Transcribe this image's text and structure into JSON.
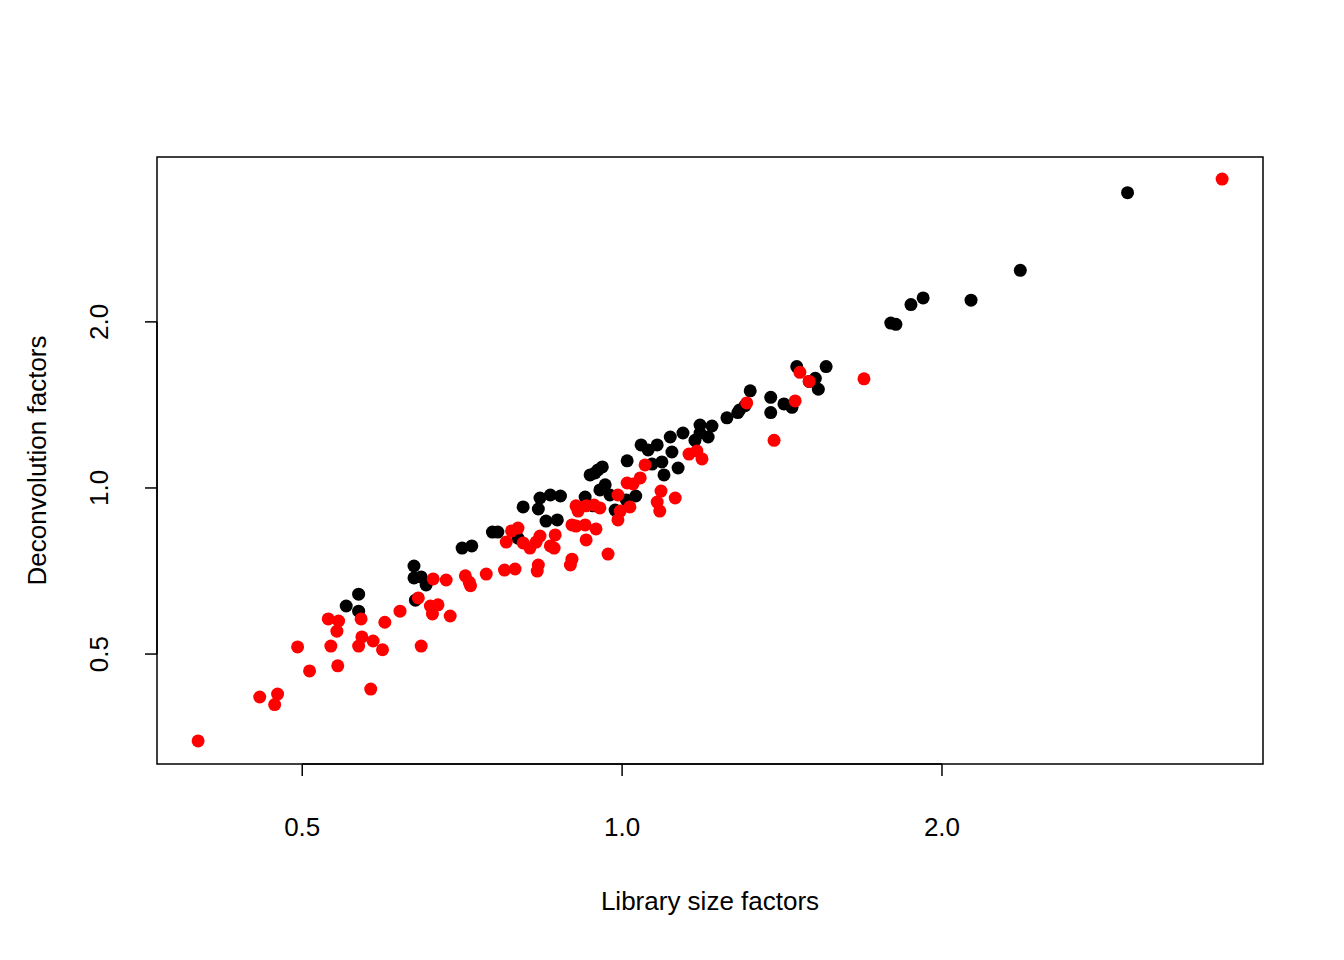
{
  "chart_data": {
    "type": "scatter",
    "x_label": "Library size factors",
    "y_label": "Deconvolution factors",
    "log": true,
    "marker": "circle",
    "xlim": [
      0.365,
      4.01
    ],
    "ylim": [
      0.316,
      3.98
    ],
    "xticks": [
      0.5,
      {
        "value": 1,
        "label": "1.0"
      },
      {
        "value": 2,
        "label": "2.0"
      }
    ],
    "yticks": [
      0.5,
      {
        "value": 1,
        "label": "1.0"
      },
      {
        "value": 2,
        "label": "2.0"
      }
    ],
    "series": [
      {
        "color": "#000000",
        "x": [
          2.99,
          2.37,
          2.13,
          1.92,
          1.87,
          1.81,
          1.79,
          1.556,
          1.46,
          1.52,
          1.53,
          1.5,
          1.445,
          1.42,
          1.38,
          1.38,
          1.32,
          1.305,
          1.29,
          1.255,
          1.285,
          1.215,
          1.184,
          1.205,
          1.184,
          1.141,
          1.11,
          1.042,
          1.058,
          1.079,
          1.114,
          1.171,
          1.09,
          1.129,
          1.095,
          1.067,
          1.011,
          0.958,
          0.949,
          0.943,
          0.933,
          0.964,
          0.953,
          0.939,
          0.974,
          0.985,
          1.03,
          1.009,
          0.923,
          0.875,
          0.856,
          0.837,
          0.834,
          0.807,
          0.869,
          0.848,
          0.798,
          0.764,
          0.755,
          0.722,
          0.707,
          0.637,
          0.637,
          0.647,
          0.639,
          0.565,
          0.55,
          0.565,
          0.654
        ],
        "values": [
          3.43,
          2.48,
          2.19,
          2.21,
          2.15,
          1.98,
          1.99,
          1.66,
          1.66,
          1.58,
          1.51,
          1.56,
          1.4,
          1.42,
          1.46,
          1.37,
          1.5,
          1.41,
          1.385,
          1.34,
          1.37,
          1.295,
          1.3,
          1.237,
          1.258,
          1.258,
          1.237,
          1.197,
          1.172,
          1.197,
          1.162,
          1.22,
          1.115,
          1.087,
          1.056,
          1.105,
          1.12,
          1.092,
          1.078,
          1.065,
          1.056,
          1.013,
          0.992,
          0.928,
          0.971,
          0.912,
          0.967,
          0.951,
          0.963,
          0.967,
          0.971,
          0.959,
          0.916,
          0.924,
          0.875,
          0.871,
          0.811,
          0.832,
          0.832,
          0.785,
          0.778,
          0.722,
          0.687,
          0.69,
          0.626,
          0.642,
          0.611,
          0.598,
          0.667
        ]
      },
      {
        "color": "#ff0000",
        "x": [
          3.67,
          1.689,
          1.5,
          1.47,
          1.455,
          1.39,
          1.31,
          1.189,
          1.176,
          1.156,
          1.051,
          1.04,
          1.024,
          1.011,
          1.017,
          1.088,
          1.079,
          1.122,
          1.085,
          0.991,
          0.996,
          0.991,
          0.953,
          0.941,
          0.925,
          0.945,
          0.905,
          0.897,
          0.909,
          0.905,
          0.97,
          0.925,
          0.923,
          0.897,
          0.894,
          0.865,
          0.863,
          0.856,
          0.837,
          0.83,
          0.834,
          0.832,
          0.819,
          0.807,
          0.793,
          0.798,
          0.787,
          0.775,
          0.778,
          0.745,
          0.712,
          0.718,
          0.72,
          0.683,
          0.664,
          0.689,
          0.671,
          0.663,
          0.66,
          0.643,
          0.647,
          0.618,
          0.595,
          0.598,
          0.583,
          0.58,
          0.568,
          0.569,
          0.565,
          0.539,
          0.541,
          0.532,
          0.529,
          0.54,
          0.508,
          0.495,
          0.474,
          0.471,
          0.456,
          0.399
        ],
        "values": [
          3.63,
          1.577,
          1.56,
          1.62,
          1.438,
          1.22,
          1.426,
          1.129,
          1.167,
          1.152,
          1.101,
          1.043,
          1.017,
          1.021,
          0.924,
          0.987,
          0.943,
          0.959,
          0.908,
          0.971,
          0.908,
          0.875,
          0.92,
          0.931,
          0.928,
          0.843,
          0.928,
          0.857,
          0.908,
          0.853,
          0.759,
          0.805,
          0.857,
          0.743,
          0.725,
          0.822,
          0.778,
          0.785,
          0.818,
          0.798,
          0.725,
          0.707,
          0.778,
          0.795,
          0.713,
          0.846,
          0.836,
          0.71,
          0.798,
          0.698,
          0.693,
          0.675,
          0.665,
          0.681,
          0.684,
          0.586,
          0.614,
          0.591,
          0.611,
          0.632,
          0.517,
          0.598,
          0.509,
          0.571,
          0.528,
          0.432,
          0.579,
          0.537,
          0.517,
          0.55,
          0.574,
          0.517,
          0.579,
          0.476,
          0.466,
          0.515,
          0.423,
          0.405,
          0.418,
          0.348
        ]
      }
    ]
  }
}
